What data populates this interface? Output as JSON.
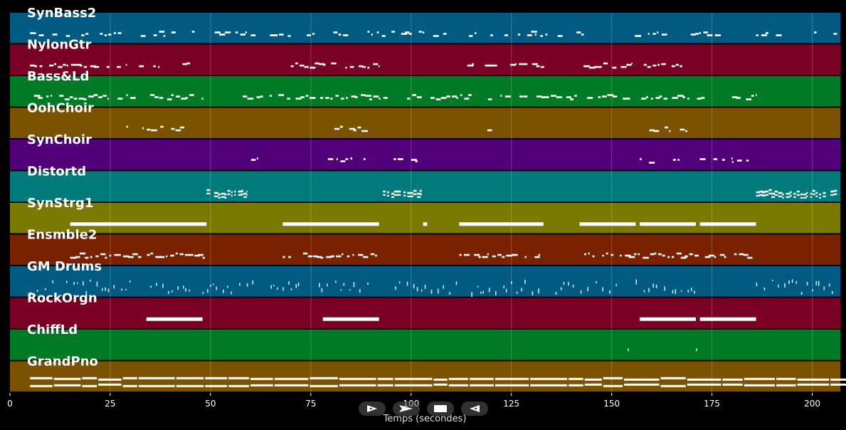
{
  "axis": {
    "label": "Temps (secondes)",
    "ticks": [
      0,
      25,
      50,
      75,
      100,
      125,
      150,
      175,
      200
    ],
    "xlim": [
      0,
      207
    ]
  },
  "tracks": [
    {
      "name": "SynBass2",
      "color": "#005a82",
      "density": 0.55,
      "kind": "stair",
      "segments": [
        [
          5,
          48
        ],
        [
          49,
          100
        ],
        [
          101,
          178
        ],
        [
          186,
          206
        ]
      ]
    },
    {
      "name": "NylonGtr",
      "color": "#7a0026",
      "density": 0.7,
      "kind": "stair",
      "segments": [
        [
          5,
          19
        ],
        [
          20,
          29
        ],
        [
          31,
          40
        ],
        [
          43,
          46
        ],
        [
          70,
          92
        ],
        [
          114,
          133
        ],
        [
          143,
          155
        ],
        [
          158,
          168
        ]
      ]
    },
    {
      "name": "Bass&Ld",
      "color": "#007a25",
      "density": 0.75,
      "kind": "stair",
      "segments": [
        [
          6,
          49
        ],
        [
          58,
          94
        ],
        [
          99,
          173
        ],
        [
          180,
          186
        ]
      ]
    },
    {
      "name": "OohChoir",
      "color": "#7a5200",
      "density": 0.6,
      "kind": "stair",
      "segments": [
        [
          29,
          30
        ],
        [
          33,
          44
        ],
        [
          47,
          49
        ],
        [
          80,
          90
        ],
        [
          119,
          120
        ],
        [
          158,
          169
        ]
      ]
    },
    {
      "name": "SynChoir",
      "color": "#52007a",
      "density": 0.5,
      "kind": "stair",
      "segments": [
        [
          58,
          62
        ],
        [
          68,
          69
        ],
        [
          78,
          89
        ],
        [
          93,
          98
        ],
        [
          100,
          103
        ],
        [
          157,
          167
        ],
        [
          171,
          180
        ],
        [
          180,
          184
        ]
      ]
    },
    {
      "name": "Distortd",
      "color": "#007a7a",
      "density": 0.9,
      "kind": "dense",
      "segments": [
        [
          49,
          59
        ],
        [
          93,
          103
        ],
        [
          186,
          206
        ]
      ]
    },
    {
      "name": "SynStrg1",
      "color": "#7a7a00",
      "density": 1.0,
      "kind": "long",
      "segments": [
        [
          15,
          49
        ],
        [
          68,
          92
        ],
        [
          103,
          104
        ],
        [
          112,
          133
        ],
        [
          142,
          156
        ],
        [
          157,
          171
        ],
        [
          172,
          186
        ]
      ]
    },
    {
      "name": "Ensmble2",
      "color": "#7a2200",
      "density": 0.85,
      "kind": "stair",
      "segments": [
        [
          15,
          49
        ],
        [
          68,
          92
        ],
        [
          112,
          132
        ],
        [
          142,
          186
        ]
      ]
    },
    {
      "name": "GM Drums",
      "color": "#005a82",
      "density": 0.35,
      "kind": "drums",
      "segments": [
        [
          5,
          12
        ],
        [
          14,
          30
        ],
        [
          35,
          45
        ],
        [
          48,
          62
        ],
        [
          65,
          73
        ],
        [
          77,
          90
        ],
        [
          96,
          112
        ],
        [
          115,
          133
        ],
        [
          136,
          152
        ],
        [
          156,
          172
        ],
        [
          186,
          206
        ]
      ]
    },
    {
      "name": "RockOrgn",
      "color": "#7a0026",
      "density": 1.0,
      "kind": "long",
      "segments": [
        [
          34,
          48
        ],
        [
          78,
          92
        ],
        [
          157,
          171
        ],
        [
          172,
          186
        ]
      ]
    },
    {
      "name": "ChiffLd",
      "color": "#007a25",
      "density": 0.2,
      "kind": "sparse",
      "segments": [
        [
          154,
          155
        ],
        [
          171,
          172
        ]
      ]
    },
    {
      "name": "GrandPno",
      "color": "#7a5200",
      "density": 1.0,
      "kind": "double",
      "segments": [
        [
          5,
          206
        ]
      ]
    }
  ],
  "controls": [
    {
      "name": "play-forward-button",
      "icon": "play-outline-icon"
    },
    {
      "name": "fast-forward-button",
      "icon": "fast-forward-icon"
    },
    {
      "name": "stop-button",
      "icon": "stop-icon"
    },
    {
      "name": "rewind-button",
      "icon": "rewind-outline-icon"
    }
  ]
}
